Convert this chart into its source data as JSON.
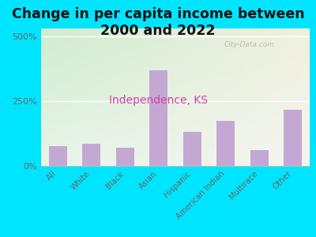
{
  "title": "Change in per capita income between\n2000 and 2022",
  "subtitle": "Independence, KS",
  "categories": [
    "All",
    "White",
    "Black",
    "Asian",
    "Hispanic",
    "American Indian",
    "Multirace",
    "Other"
  ],
  "values": [
    75,
    85,
    70,
    370,
    130,
    175,
    60,
    215
  ],
  "bar_color": "#c4a8d4",
  "title_fontsize": 12.5,
  "subtitle_fontsize": 10,
  "subtitle_color": "#cc44aa",
  "title_color": "#111111",
  "background_outer": "#00e5ff",
  "yticks": [
    0,
    250,
    500
  ],
  "ytick_labels": [
    "0%",
    "250%",
    "500%"
  ],
  "ymax": 530,
  "watermark": "City-Data.com"
}
